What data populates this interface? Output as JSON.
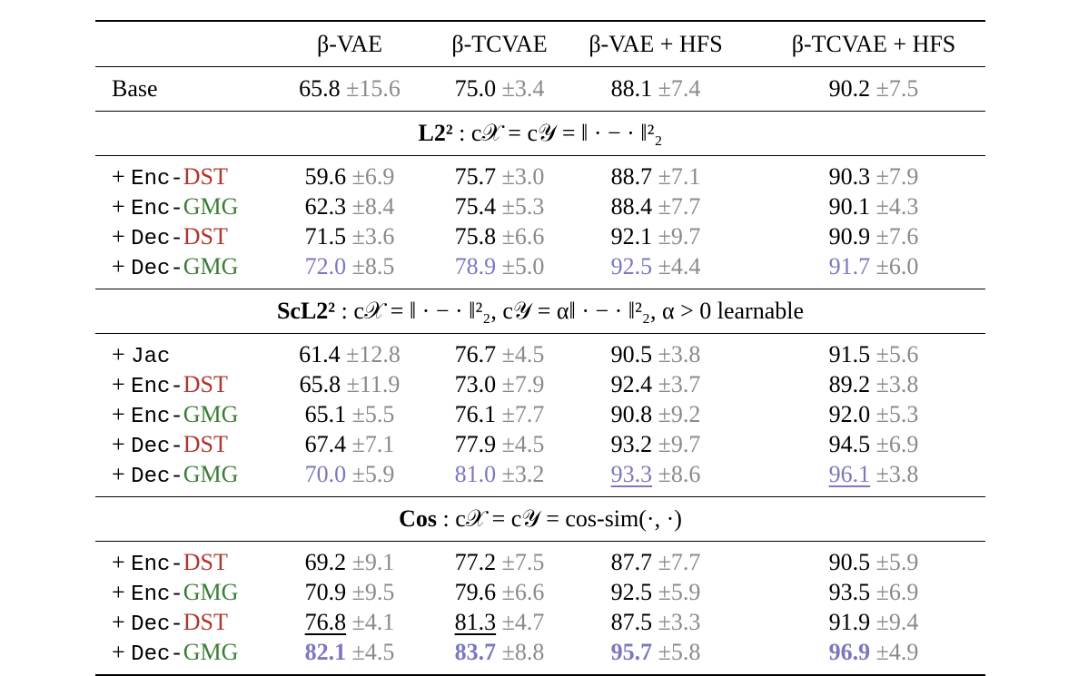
{
  "columns": [
    "β-VAE",
    "β-TCVAE",
    "β-VAE + HFS",
    "β-TCVAE + HFS"
  ],
  "base": {
    "label": "Base",
    "cells": [
      {
        "v": "65.8",
        "s": "±15.6",
        "mark": "none"
      },
      {
        "v": "75.0",
        "s": "±3.4",
        "mark": "none"
      },
      {
        "v": "88.1",
        "s": "±7.4",
        "mark": "none"
      },
      {
        "v": "90.2",
        "s": "±7.5",
        "mark": "none"
      }
    ]
  },
  "colors": {
    "dst": "#b0352a",
    "gmg": "#3b7d35",
    "highlight": "#7b77c2",
    "std": "#8a8a8a"
  },
  "sections": [
    {
      "title_bold": "L2²",
      "title_rest": " : c𝒳 = c𝒴 = ‖ · − · ‖²₂",
      "rows": [
        {
          "prefix": "+ ",
          "mod": "Enc-",
          "method": "DST",
          "cells": [
            {
              "v": "59.6",
              "s": "±6.9",
              "mark": "none"
            },
            {
              "v": "75.7",
              "s": "±3.0",
              "mark": "none"
            },
            {
              "v": "88.7",
              "s": "±7.1",
              "mark": "none"
            },
            {
              "v": "90.3",
              "s": "±7.9",
              "mark": "none"
            }
          ]
        },
        {
          "prefix": "+ ",
          "mod": "Enc-",
          "method": "GMG",
          "cells": [
            {
              "v": "62.3",
              "s": "±8.4",
              "mark": "none"
            },
            {
              "v": "75.4",
              "s": "±5.3",
              "mark": "none"
            },
            {
              "v": "88.4",
              "s": "±7.7",
              "mark": "none"
            },
            {
              "v": "90.1",
              "s": "±4.3",
              "mark": "none"
            }
          ]
        },
        {
          "prefix": "+ ",
          "mod": "Dec-",
          "method": "DST",
          "cells": [
            {
              "v": "71.5",
              "s": "±3.6",
              "mark": "none"
            },
            {
              "v": "75.8",
              "s": "±6.6",
              "mark": "none"
            },
            {
              "v": "92.1",
              "s": "±9.7",
              "mark": "none"
            },
            {
              "v": "90.9",
              "s": "±7.6",
              "mark": "none"
            }
          ]
        },
        {
          "prefix": "+ ",
          "mod": "Dec-",
          "method": "GMG",
          "cells": [
            {
              "v": "72.0",
              "s": "±8.5",
              "mark": "second"
            },
            {
              "v": "78.9",
              "s": "±5.0",
              "mark": "second"
            },
            {
              "v": "92.5",
              "s": "±4.4",
              "mark": "second"
            },
            {
              "v": "91.7",
              "s": "±6.0",
              "mark": "second"
            }
          ]
        }
      ]
    },
    {
      "title_bold": "ScL2²",
      "title_rest": " : c𝒳 = ‖ · − · ‖²₂, c𝒴 = α‖ · − · ‖²₂, α > 0 learnable",
      "rows": [
        {
          "prefix": "+ ",
          "mod": "Jac",
          "method": "",
          "cells": [
            {
              "v": "61.4",
              "s": "±12.8",
              "mark": "none"
            },
            {
              "v": "76.7",
              "s": "±4.5",
              "mark": "none"
            },
            {
              "v": "90.5",
              "s": "±3.8",
              "mark": "none"
            },
            {
              "v": "91.5",
              "s": "±5.6",
              "mark": "none"
            }
          ]
        },
        {
          "prefix": "+ ",
          "mod": "Enc-",
          "method": "DST",
          "cells": [
            {
              "v": "65.8",
              "s": "±11.9",
              "mark": "none"
            },
            {
              "v": "73.0",
              "s": "±7.9",
              "mark": "none"
            },
            {
              "v": "92.4",
              "s": "±3.7",
              "mark": "none"
            },
            {
              "v": "89.2",
              "s": "±3.8",
              "mark": "none"
            }
          ]
        },
        {
          "prefix": "+ ",
          "mod": "Enc-",
          "method": "GMG",
          "cells": [
            {
              "v": "65.1",
              "s": "±5.5",
              "mark": "none"
            },
            {
              "v": "76.1",
              "s": "±7.7",
              "mark": "none"
            },
            {
              "v": "90.8",
              "s": "±9.2",
              "mark": "none"
            },
            {
              "v": "92.0",
              "s": "±5.3",
              "mark": "none"
            }
          ]
        },
        {
          "prefix": "+ ",
          "mod": "Dec-",
          "method": "DST",
          "cells": [
            {
              "v": "67.4",
              "s": "±7.1",
              "mark": "none"
            },
            {
              "v": "77.9",
              "s": "±4.5",
              "mark": "none"
            },
            {
              "v": "93.2",
              "s": "±9.7",
              "mark": "none"
            },
            {
              "v": "94.5",
              "s": "±6.9",
              "mark": "none"
            }
          ]
        },
        {
          "prefix": "+ ",
          "mod": "Dec-",
          "method": "GMG",
          "cells": [
            {
              "v": "70.0",
              "s": "±5.9",
              "mark": "second"
            },
            {
              "v": "81.0",
              "s": "±3.2",
              "mark": "second"
            },
            {
              "v": "93.3",
              "s": "±8.6",
              "mark": "second-underline"
            },
            {
              "v": "96.1",
              "s": "±3.8",
              "mark": "second-underline"
            }
          ]
        }
      ]
    },
    {
      "title_bold": "Cos",
      "title_rest": " : c𝒳 = c𝒴 = cos-sim(·, ·)",
      "rows": [
        {
          "prefix": "+ ",
          "mod": "Enc-",
          "method": "DST",
          "cells": [
            {
              "v": "69.2",
              "s": "±9.1",
              "mark": "none"
            },
            {
              "v": "77.2",
              "s": "±7.5",
              "mark": "none"
            },
            {
              "v": "87.7",
              "s": "±7.7",
              "mark": "none"
            },
            {
              "v": "90.5",
              "s": "±5.9",
              "mark": "none"
            }
          ]
        },
        {
          "prefix": "+ ",
          "mod": "Enc-",
          "method": "GMG",
          "cells": [
            {
              "v": "70.9",
              "s": "±9.5",
              "mark": "none"
            },
            {
              "v": "79.6",
              "s": "±6.6",
              "mark": "none"
            },
            {
              "v": "92.5",
              "s": "±5.9",
              "mark": "none"
            },
            {
              "v": "93.5",
              "s": "±6.9",
              "mark": "none"
            }
          ]
        },
        {
          "prefix": "+ ",
          "mod": "Dec-",
          "method": "DST",
          "cells": [
            {
              "v": "76.8",
              "s": "±4.1",
              "mark": "underline"
            },
            {
              "v": "81.3",
              "s": "±4.7",
              "mark": "underline"
            },
            {
              "v": "87.5",
              "s": "±3.3",
              "mark": "none"
            },
            {
              "v": "91.9",
              "s": "±9.4",
              "mark": "none"
            }
          ]
        },
        {
          "prefix": "+ ",
          "mod": "Dec-",
          "method": "GMG",
          "cells": [
            {
              "v": "82.1",
              "s": "±4.5",
              "mark": "best"
            },
            {
              "v": "83.7",
              "s": "±8.8",
              "mark": "best"
            },
            {
              "v": "95.7",
              "s": "±5.8",
              "mark": "best"
            },
            {
              "v": "96.9",
              "s": "±4.9",
              "mark": "best"
            }
          ]
        }
      ]
    }
  ]
}
